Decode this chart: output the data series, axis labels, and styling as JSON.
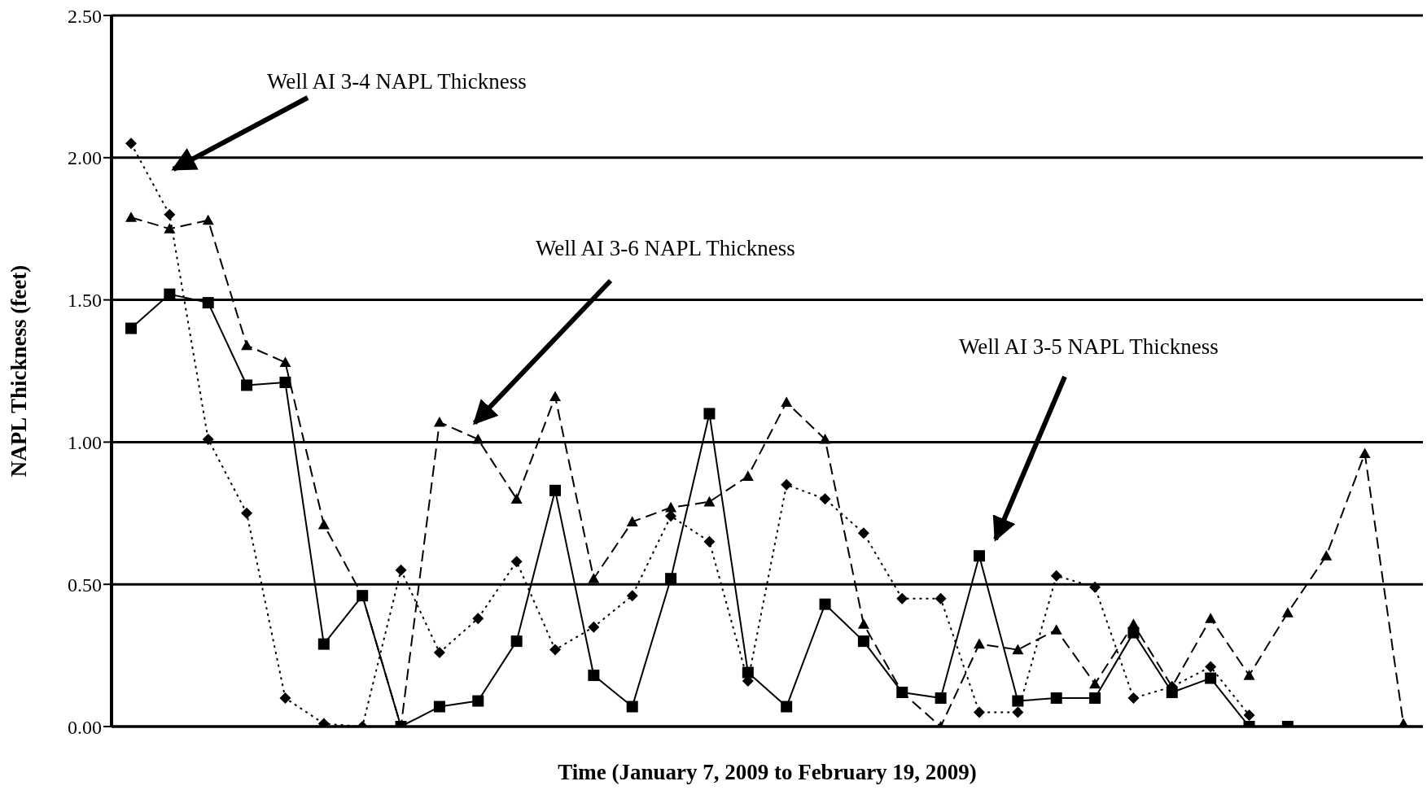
{
  "chart_data": {
    "type": "line",
    "xlabel": "Time (January 7, 2009 to February 19, 2009)",
    "ylabel": "NAPL Thickness (feet)",
    "categories": [
      null,
      null,
      null,
      null,
      null,
      null,
      null,
      null,
      null,
      null,
      null,
      null,
      null,
      null,
      null,
      null,
      null,
      null,
      null,
      null,
      null,
      null,
      null,
      null,
      null,
      null,
      null,
      null,
      null,
      null,
      null,
      null,
      null,
      null
    ],
    "series": [
      {
        "color": "#000000",
        "marker": "diamond",
        "line_style": "dotted",
        "values": [
          2.05,
          1.8,
          1.01,
          0.75,
          0.1,
          0.01,
          0.0,
          0.55,
          0.26,
          0.38,
          0.58,
          0.27,
          0.35,
          0.46,
          0.74,
          0.65,
          0.16,
          0.85,
          0.8,
          0.68,
          0.45,
          0.45,
          0.05,
          0.05,
          0.53,
          0.49,
          0.1,
          0.14,
          0.21,
          0.04,
          null,
          null,
          null,
          null
        ]
      },
      {
        "color": "#000000",
        "marker": "triangle",
        "line_style": "dashed",
        "values": [
          1.79,
          1.75,
          1.78,
          1.34,
          1.28,
          0.71,
          0.46,
          0.0,
          1.07,
          1.01,
          0.8,
          1.16,
          0.52,
          0.72,
          0.77,
          0.79,
          0.88,
          1.14,
          1.01,
          0.36,
          0.12,
          0.0,
          0.29,
          0.27,
          0.34,
          0.15,
          0.36,
          0.14,
          0.38,
          0.18,
          0.4,
          0.6,
          0.96,
          0.01
        ]
      },
      {
        "color": "#000000",
        "marker": "square",
        "line_style": "solid",
        "values": [
          1.4,
          1.52,
          1.49,
          1.2,
          1.21,
          0.29,
          0.46,
          0.0,
          0.07,
          0.09,
          0.3,
          0.83,
          0.18,
          0.07,
          0.52,
          1.1,
          0.19,
          0.07,
          0.43,
          0.3,
          0.12,
          0.1,
          0.6,
          0.09,
          0.1,
          0.1,
          0.33,
          0.12,
          0.17,
          0.0,
          0.0,
          null,
          null,
          null
        ]
      }
    ],
    "ylim": [
      0,
      2.5
    ],
    "yticks": [
      {
        "value": 0,
        "label": "0.00"
      },
      {
        "value": 0.5,
        "label": "0.50"
      },
      {
        "value": 1,
        "label": "1.00"
      },
      {
        "value": 1.5,
        "label": "1.50"
      },
      {
        "value": 2,
        "label": "2.00"
      },
      {
        "value": 2.5,
        "label": "2.50"
      }
    ],
    "annotations": [
      "Well AI 3-4 NAPL Thickness",
      "Well AI 3-6 NAPL Thickness",
      "Well AI 3-5 NAPL Thickness"
    ],
    "grid": "y",
    "legend": false
  }
}
